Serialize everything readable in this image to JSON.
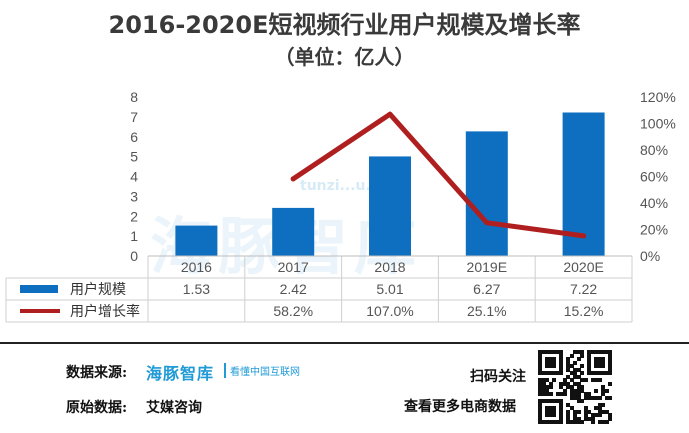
{
  "title": "2016-2020E短视频行业用户规模及增长率",
  "subtitle": "（单位：亿人）",
  "watermark": {
    "brand": "海豚智库",
    "site": "tunzi...u.com"
  },
  "chart_data": {
    "type": "bar+line",
    "categories": [
      "2016",
      "2017",
      "2018",
      "2019E",
      "2020E"
    ],
    "series": [
      {
        "name": "用户规模",
        "type": "bar",
        "axis": "left",
        "values": [
          1.53,
          2.42,
          5.01,
          6.27,
          7.22
        ],
        "labels": [
          "1.53",
          "2.42",
          "5.01",
          "6.27",
          "7.22"
        ],
        "color": "#0e6fc0"
      },
      {
        "name": "用户增长率",
        "type": "line",
        "axis": "right",
        "values": [
          null,
          58.2,
          107.0,
          25.1,
          15.2
        ],
        "labels": [
          "",
          "58.2%",
          "107.0%",
          "25.1%",
          "15.2%"
        ],
        "color": "#b01f1f"
      }
    ],
    "y_left": {
      "min": 0,
      "max": 8,
      "ticks": [
        "0",
        "1",
        "2",
        "3",
        "4",
        "5",
        "6",
        "7",
        "8"
      ]
    },
    "y_right": {
      "min": 0,
      "max": 120,
      "ticks": [
        "0%",
        "20%",
        "40%",
        "60%",
        "80%",
        "100%",
        "120%"
      ]
    },
    "legend": "data-table"
  },
  "footer": {
    "source_label": "数据来源:",
    "brand": "海豚智库",
    "brand_tagline": "看懂中国互联网",
    "origin_label": "原始数据:",
    "origin_value": "艾媒咨询",
    "scan_text": "扫码关注",
    "more_text": "查看更多电商数据"
  }
}
